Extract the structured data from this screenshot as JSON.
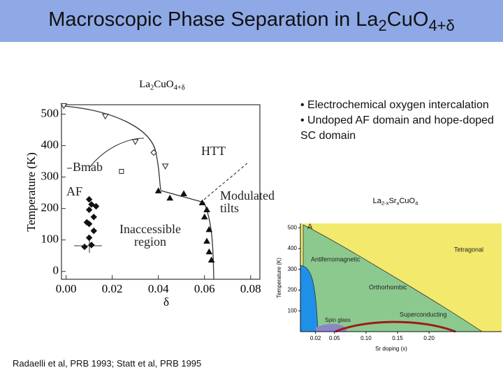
{
  "title": {
    "parts": [
      "Macroscopic Phase Separation in La",
      "2",
      "CuO",
      "4+δ"
    ]
  },
  "bullets": [
    "• Electrochemical oxygen intercalation",
    "• Undoped AF domain and hope-doped SC domain"
  ],
  "citation": "Radaelli et al, PRB 1993; Statt et al, PRB 1995",
  "chart_data": [
    {
      "type": "scatter",
      "title_parts": [
        "La",
        "2",
        "CuO",
        "4+δ"
      ],
      "xlabel": "δ",
      "ylabel": "Temperature (K)",
      "xlim": [
        -0.002,
        0.084
      ],
      "ylim": [
        -25,
        530
      ],
      "xticks": [
        {
          "value": 0,
          "label": "0.00"
        },
        {
          "value": 0.02,
          "label": "0.02"
        },
        {
          "value": 0.04,
          "label": "0.04"
        },
        {
          "value": 0.06,
          "label": "0.06"
        },
        {
          "value": 0.08,
          "label": "0.08"
        }
      ],
      "yticks": [
        0,
        100,
        200,
        300,
        400,
        500
      ],
      "annotations": [
        [
          "HTT"
        ],
        [
          "Bmab"
        ],
        [
          "AF"
        ],
        [
          "Modulated",
          "tilts"
        ],
        [
          "Inaccessible",
          "region"
        ]
      ],
      "series": [
        {
          "marker": "triangle-down",
          "filled": false,
          "color": "#222222",
          "x": [
            -0.001,
            0.017,
            0.03,
            0.043
          ],
          "values": [
            527,
            494,
            413,
            335
          ]
        },
        {
          "marker": "diamond",
          "filled": false,
          "color": "#222222",
          "x": [
            0.038
          ],
          "values": [
            378
          ]
        },
        {
          "marker": "square",
          "filled": false,
          "color": "#222222",
          "x": [
            0.024
          ],
          "values": [
            318
          ]
        },
        {
          "marker": "triangle",
          "filled": true,
          "color": "#111111",
          "x": [
            0.04,
            0.051,
            0.045,
            0.059,
            0.061,
            0.06,
            0.062,
            0.061,
            0.062,
            0.063
          ],
          "values": [
            256,
            247,
            233,
            218,
            196,
            173,
            133,
            96,
            62,
            36
          ]
        },
        {
          "marker": "diamond",
          "filled": true,
          "color": "#111111",
          "x": [
            0.01,
            0.011,
            0.01,
            0.012,
            0.01,
            0.012,
            0.01,
            0.011,
            0.008,
            0.013,
            0.009
          ],
          "values": [
            229,
            213,
            196,
            173,
            151,
            129,
            107,
            84,
            78,
            207,
            156
          ]
        }
      ]
    },
    {
      "type": "phase",
      "title_parts": [
        "La",
        "2-x",
        "Sr",
        "x",
        "CuO",
        "4"
      ],
      "xlabel": "Sr doping (x)",
      "ylabel": "Temperature (K)",
      "xlim": [
        -0.004,
        0.315
      ],
      "ylim": [
        0,
        521
      ],
      "xticks": [
        0.02,
        0.05,
        {
          "value": 0.1,
          "label": "0.10"
        },
        0.15,
        {
          "value": 0.2,
          "label": "0.20"
        }
      ],
      "yticks": [
        100,
        200,
        300,
        400,
        500
      ],
      "regions": [
        "A",
        "Tetragonal",
        "Antiferromagnetic",
        "Orthorhombic",
        "Spin glass",
        "Superconducting"
      ],
      "colors": {
        "tetragonal": "#f3e96c",
        "orthorhombic": "#8cc98e",
        "antiferromagnetic": "#1e90e8",
        "spin_glass": "#8a86c8",
        "superconducting": "#a01818"
      }
    }
  ]
}
